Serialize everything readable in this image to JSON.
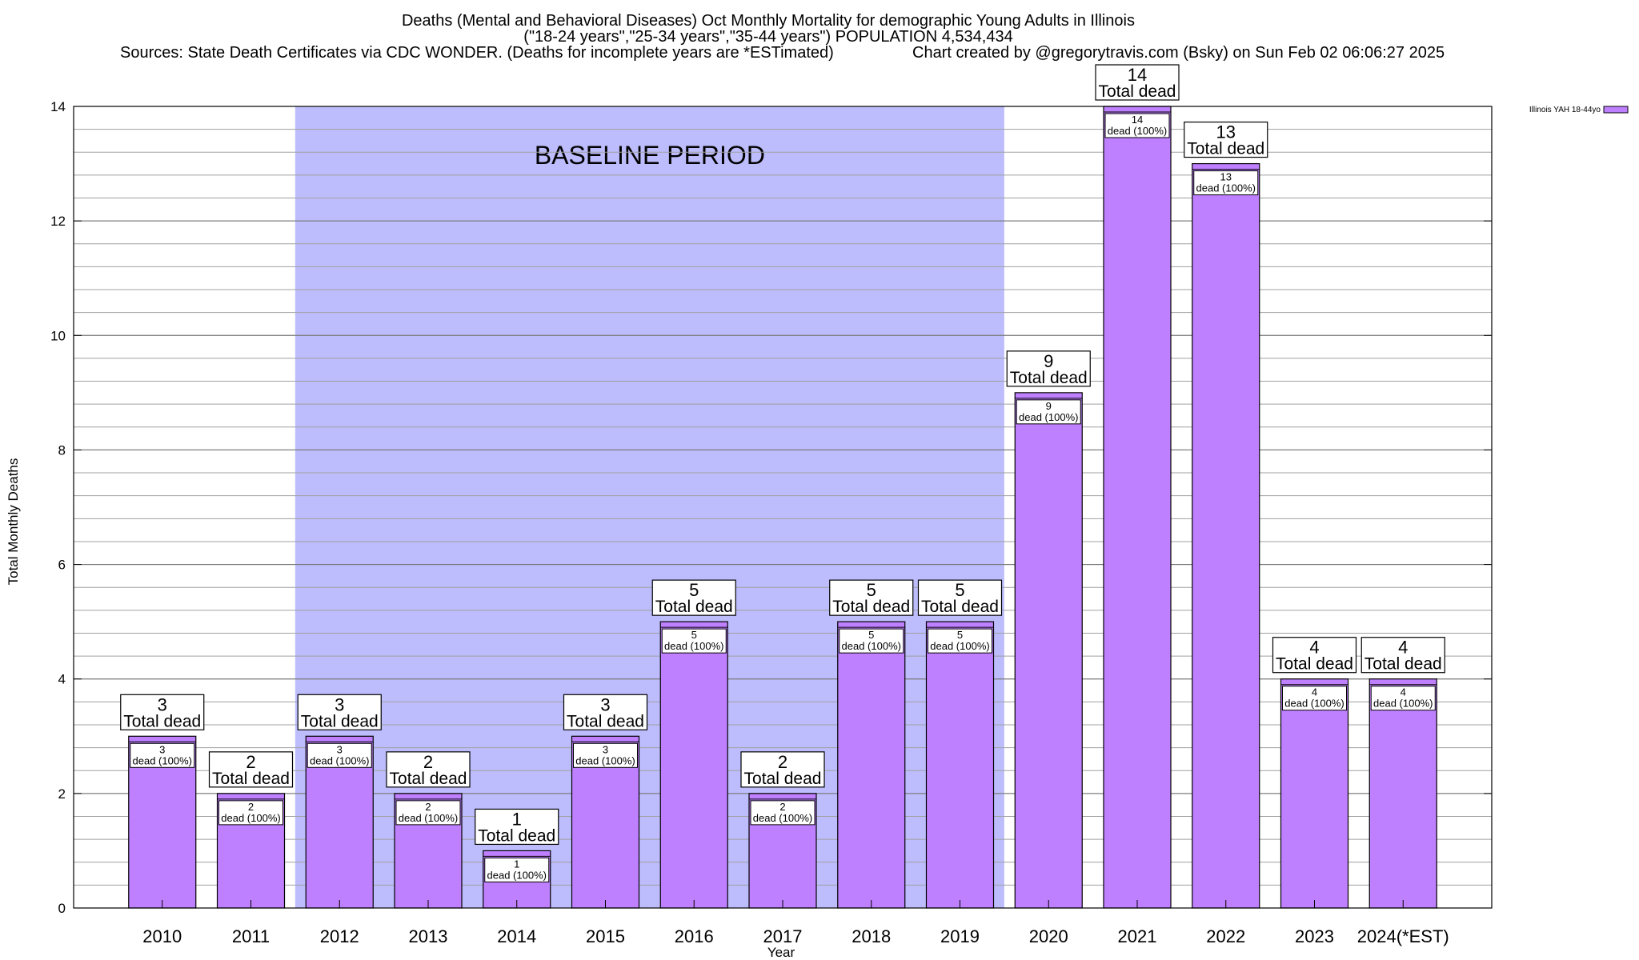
{
  "chart_data": {
    "type": "bar",
    "title_lines": [
      "Deaths (Mental and Behavioral Diseases) Oct Monthly Mortality for demographic Young Adults in Illinois",
      "(\"18-24 years\",\"25-34 years\",\"35-44 years\") POPULATION 4,534,434",
      "Sources: State Death Certificates via CDC WONDER. (Deaths for incomplete years are *ESTimated)"
    ],
    "credit": "Chart created by @gregorytravis.com (Bsky) on Sun Feb 02 06:06:27 2025",
    "xlabel": "Year",
    "ylabel": "Total Monthly Deaths",
    "ylim": [
      0,
      14
    ],
    "yticks": [
      0,
      2,
      4,
      6,
      8,
      10,
      12,
      14
    ],
    "ytick_labels": [
      "0",
      "2",
      "4",
      "6",
      "8",
      "10",
      "12",
      "14"
    ],
    "grid": true,
    "categories": [
      "2010",
      "2011",
      "2012",
      "2013",
      "2014",
      "2015",
      "2016",
      "2017",
      "2018",
      "2019",
      "2020",
      "2021",
      "2022",
      "2023",
      "2024(*EST)"
    ],
    "series": [
      {
        "name": "Illinois YAH 18-44yo",
        "color": "#bf80ff",
        "values": [
          3,
          2,
          3,
          2,
          1,
          3,
          5,
          2,
          5,
          5,
          9,
          14,
          13,
          4,
          4
        ]
      }
    ],
    "total_label_suffix": "Total dead",
    "inner_label_suffix": "dead (100%)",
    "annotations": {
      "baseline_label": "BASELINE PERIOD",
      "baseline_start": "2012",
      "baseline_end": "2019",
      "baseline_color": "#bdbdfd"
    },
    "legend": {
      "placement": "top-right",
      "label": "Illinois YAH 18-44yo"
    }
  }
}
